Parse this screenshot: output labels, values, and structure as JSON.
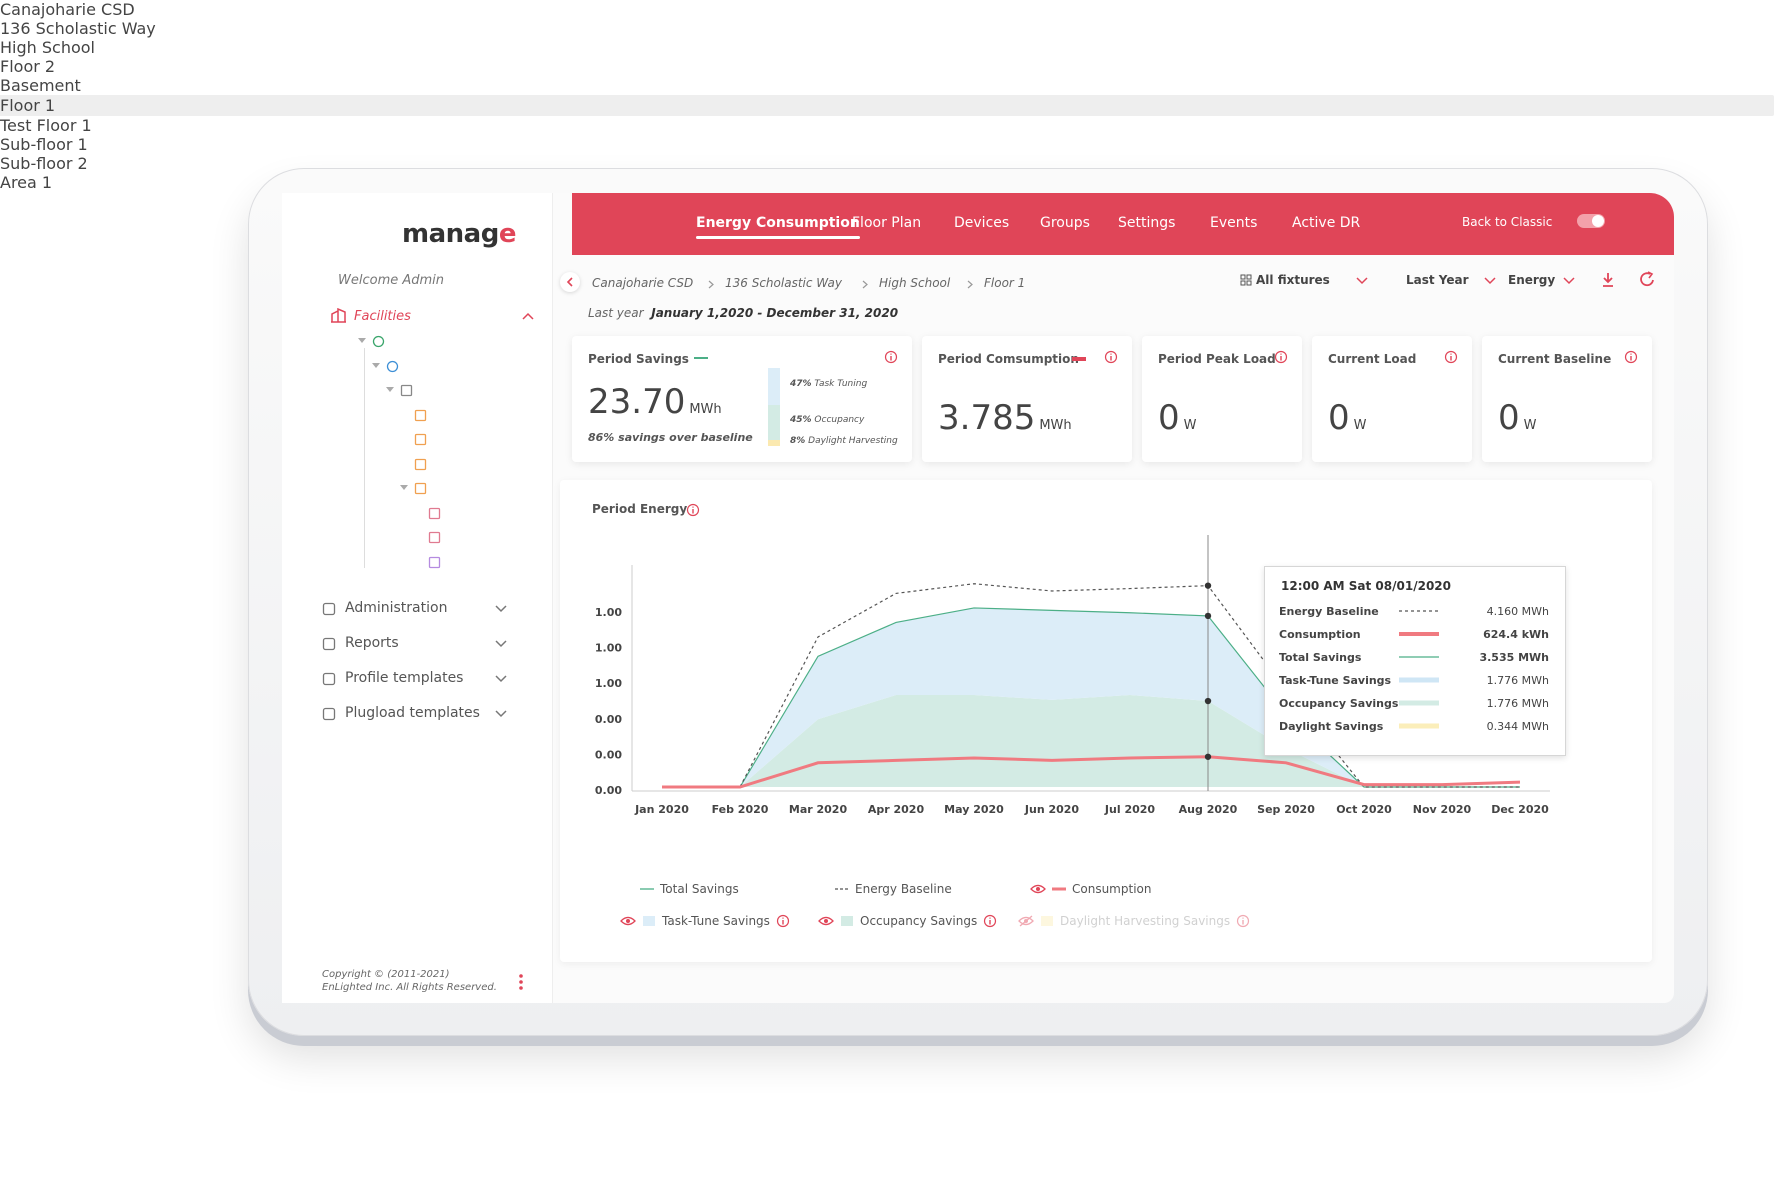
{
  "sidebar": {
    "logo": "manage",
    "welcome": "Welcome Admin",
    "facilities": "Facilities",
    "tree": [
      "Canajoharie CSD",
      "136 Scholastic Way",
      "High School",
      "Floor 2",
      "Basement",
      "Floor 1",
      "Test Floor 1",
      "Sub-floor 1",
      "Sub-floor 2",
      "Area 1"
    ],
    "menu": [
      "Administration",
      "Reports",
      "Profile templates",
      "Plugload templates"
    ],
    "copyright": [
      "Copyright © (2011-2021)",
      "EnLighted Inc. All Rights Reserved."
    ]
  },
  "nav": {
    "tabs": [
      "Energy Consumption",
      "Floor Plan",
      "Devices",
      "Groups",
      "Settings",
      "Events",
      "Active DR"
    ],
    "back_to_classic": "Back to Classic"
  },
  "toolbar": {
    "breadcrumb": [
      "Canajoharie CSD",
      "136 Scholastic Way",
      "High School",
      "Floor 1"
    ],
    "filters": [
      "All fixtures",
      "Last Year",
      "Energy"
    ],
    "period_label": "Last year",
    "period": "January 1,2020 - December 31, 2020"
  },
  "cards": [
    {
      "title": "Period Savings",
      "value": "23.70",
      "unit": "MWh",
      "note": "86% savings over baseline",
      "breakdown": [
        {
          "pct": "47%",
          "label": "Task Tuning"
        },
        {
          "pct": "45%",
          "label": "Occupancy"
        },
        {
          "pct": "8%",
          "label": "Daylight Harvesting"
        }
      ]
    },
    {
      "title": "Period Comsumption",
      "value": "3.785",
      "unit": "MWh"
    },
    {
      "title": "Period Peak Load",
      "value": "0",
      "unit": "W"
    },
    {
      "title": "Current Load",
      "value": "0",
      "unit": "W"
    },
    {
      "title": "Current Baseline",
      "value": "0",
      "unit": "W"
    }
  ],
  "chart_data": {
    "type": "line",
    "title": "Period Energy",
    "categories": [
      "Jan 2020",
      "Feb 2020",
      "Mar 2020",
      "Apr 2020",
      "May 2020",
      "Jun 2020",
      "Jul 2020",
      "Aug 2020",
      "Sep 2020",
      "Oct 2020",
      "Nov 2020",
      "Dec 2020"
    ],
    "y_axis_labels": [
      "0.00",
      "0.00",
      "0.00",
      "1.00",
      "1.00",
      "1.00"
    ],
    "ylim": [
      0,
      5
    ],
    "series": [
      {
        "name": "Total Savings",
        "style": "line",
        "color": "#4caf87",
        "values": [
          0,
          0,
          2.7,
          3.4,
          3.7,
          3.65,
          3.6,
          3.535,
          1.5,
          0,
          0,
          0
        ]
      },
      {
        "name": "Energy Baseline",
        "style": "dashed",
        "color": "#555555",
        "values": [
          0,
          0,
          3.1,
          4.0,
          4.2,
          4.05,
          4.1,
          4.16,
          2.0,
          0,
          0,
          0
        ]
      },
      {
        "name": "Consumption",
        "style": "line",
        "color": "#f07a80",
        "values": [
          0,
          0,
          0.5,
          0.55,
          0.6,
          0.55,
          0.6,
          0.6244,
          0.5,
          0.05,
          0.05,
          0.1
        ]
      },
      {
        "name": "Occupancy Savings",
        "style": "area",
        "color": "#d3ebe4",
        "values": [
          0,
          0,
          1.4,
          1.9,
          1.9,
          1.8,
          1.9,
          1.776,
          0.8,
          0,
          0,
          0
        ]
      },
      {
        "name": "Task-Tune Savings",
        "style": "area",
        "color": "#dcedf8",
        "values": [
          0,
          0,
          1.3,
          1.5,
          1.8,
          1.85,
          1.7,
          1.776,
          0.7,
          0,
          0,
          0
        ]
      }
    ],
    "stacked_areas": true,
    "hidden_series": {
      "name": "Daylight Harvesting Savings",
      "color": "#fbeeba"
    }
  },
  "tooltip": {
    "title": "12:00 AM Sat 08/01/2020",
    "rows": [
      {
        "label": "Energy Baseline",
        "value": "4.160 MWh"
      },
      {
        "label": "Consumption",
        "value": "624.4 kWh"
      },
      {
        "label": "Total Savings",
        "value": "3.535 MWh"
      },
      {
        "label": "Task-Tune Savings",
        "value": "1.776 MWh"
      },
      {
        "label": "Occupancy Savings",
        "value": "1.776 MWh"
      },
      {
        "label": "Daylight Savings",
        "value": "0.344 MWh"
      }
    ]
  }
}
